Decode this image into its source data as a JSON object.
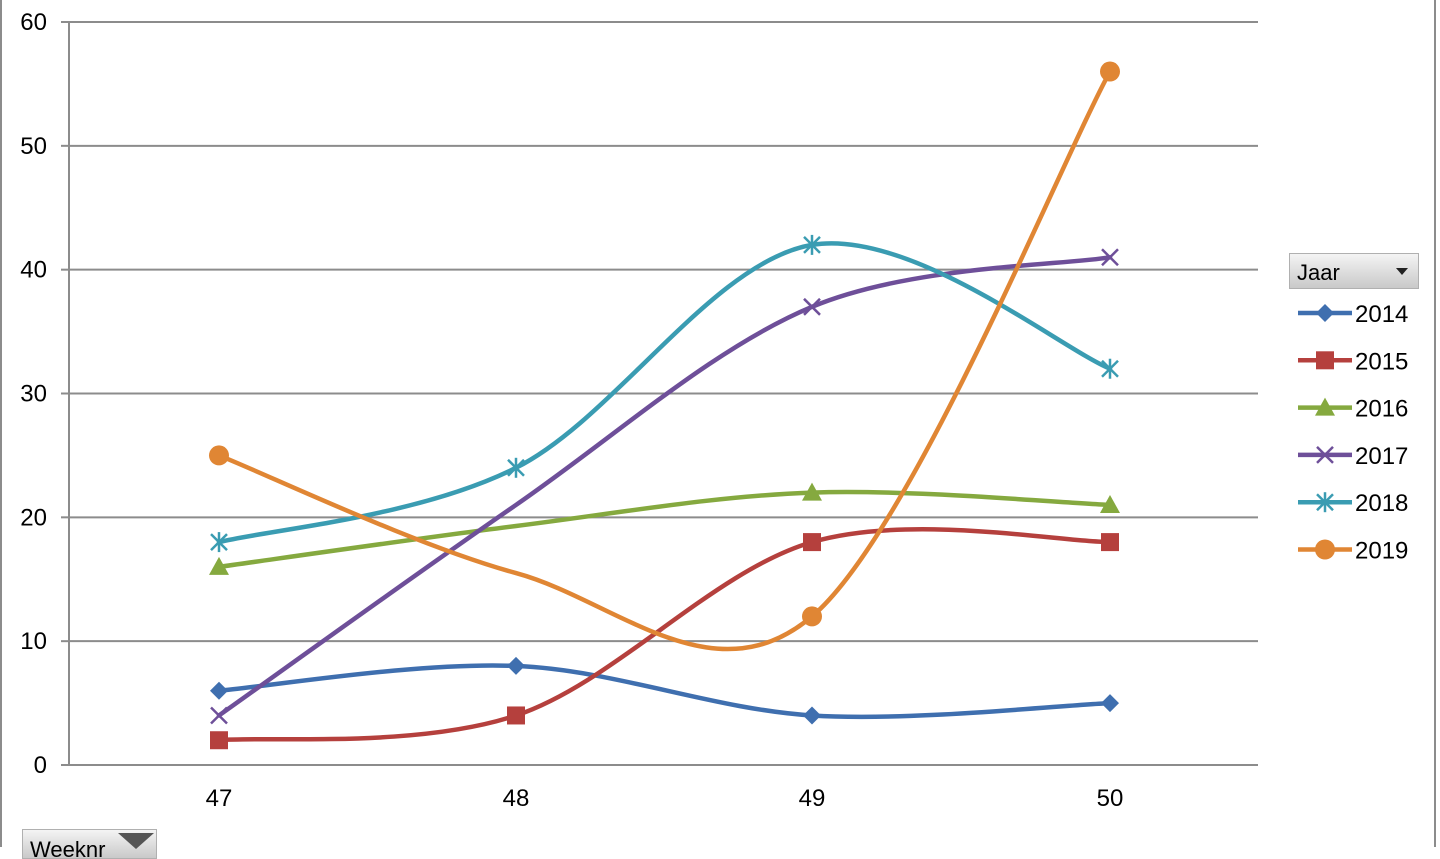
{
  "chart_data": {
    "type": "line",
    "smooth": true,
    "categories": [
      "47",
      "48",
      "49",
      "50"
    ],
    "y_ticks": [
      "0",
      "10",
      "20",
      "30",
      "40",
      "50",
      "60"
    ],
    "ylim": [
      0,
      60
    ],
    "grid": true,
    "legend_position": "right",
    "legend_title": "Jaar",
    "axis_filter_label": "Weeknr",
    "series": [
      {
        "name": "2014",
        "values": [
          6,
          8,
          4,
          5
        ],
        "color": "#3F6FAF",
        "marker": "diamond"
      },
      {
        "name": "2015",
        "values": [
          2,
          4,
          18,
          18
        ],
        "color": "#B5403D",
        "marker": "square"
      },
      {
        "name": "2016",
        "values": [
          16,
          null,
          22,
          21
        ],
        "color": "#85A93F",
        "marker": "triangle"
      },
      {
        "name": "2017",
        "values": [
          4,
          null,
          37,
          41
        ],
        "color": "#6E4F99",
        "marker": "x"
      },
      {
        "name": "2018",
        "values": [
          18,
          24,
          42,
          32
        ],
        "color": "#3A9CB2",
        "marker": "star"
      },
      {
        "name": "2019",
        "values": [
          25,
          null,
          12,
          56
        ],
        "color": "#E08634",
        "marker": "circle"
      }
    ]
  }
}
